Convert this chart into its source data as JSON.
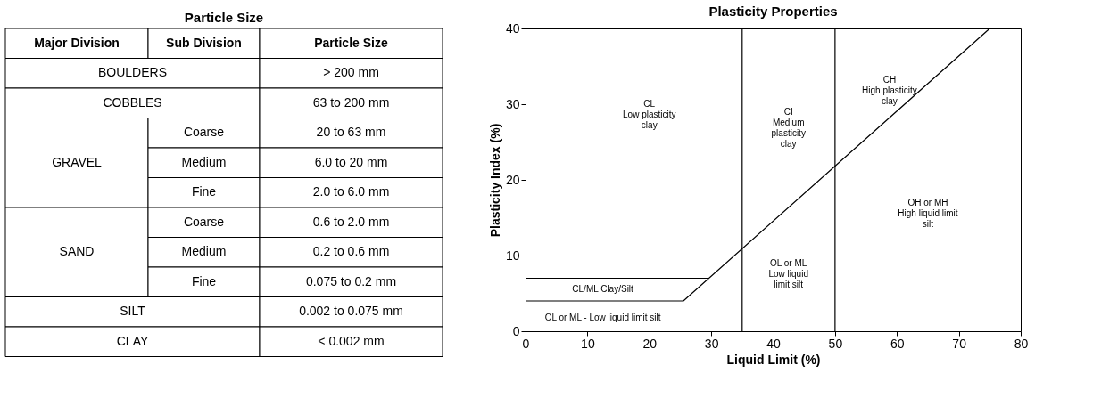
{
  "chart_data": [
    {
      "type": "other",
      "title": "Particle Size",
      "annotations": [
        "Major Division",
        "Sub Division",
        "Particle Size",
        "BOULDERS",
        "> 200 mm",
        "COBBLES",
        "63 to 200 mm",
        "GRAVEL",
        "Coarse",
        "20 to 63 mm",
        "Medium",
        "6.0 to 20 mm",
        "Fine",
        "2.0 to 6.0 mm",
        "SAND",
        "Coarse",
        "0.6 to 2.0 mm",
        "Medium",
        "0.2 to 0.6 mm",
        "Fine",
        "0.075 to 0.2 mm",
        "SILT",
        "0.002 to 0.075 mm",
        "CLAY",
        "< 0.002 mm"
      ]
    },
    {
      "type": "line",
      "title": "Plasticity Properties",
      "xlabel": "Liquid Limit (%)",
      "ylabel": "Plasticity Index (%)",
      "series": [
        {
          "color": "#000000",
          "x": [
            0,
            29.6
          ],
          "values": [
            7,
            7
          ]
        },
        {
          "color": "#000000",
          "x": [
            0,
            25.5,
            75
          ],
          "values": [
            4,
            4,
            40
          ]
        }
      ],
      "xlim": [
        0,
        80
      ],
      "ylim": [
        0,
        40
      ],
      "xticks": [
        0,
        10,
        20,
        30,
        40,
        50,
        60,
        70,
        80
      ],
      "yticks": [
        0,
        10,
        20,
        30,
        40
      ],
      "grid": false,
      "ref_lines": [
        {
          "axis": "x",
          "value": 35,
          "color": "#000000"
        },
        {
          "axis": "x",
          "value": 50,
          "color": "#000000"
        }
      ],
      "annotations": [
        "CL\nLow plasticity\nclay",
        "CI\nMedium\nplasticity\nclay",
        "CH\nHigh plasticity\nclay",
        "OH or MH\nHigh liquid limit\nsilt",
        "OL or ML\nLow liquid\nlimit silt",
        "CL/ML Clay/Silt",
        "OL or ML - Low liquid limit silt"
      ]
    }
  ]
}
